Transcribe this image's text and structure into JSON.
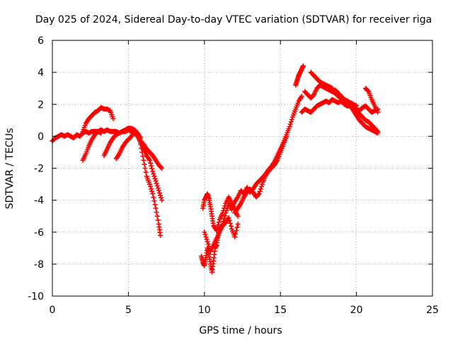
{
  "chart_data": {
    "type": "scatter",
    "title": "Day 025 of 2024, Sidereal Day-to-day VTEC variation (SDTVAR) for receiver riga",
    "xlabel": "GPS time / hours",
    "ylabel": "SDTVAR / TECUs",
    "xlim": [
      0,
      25
    ],
    "ylim": [
      -10,
      6
    ],
    "x_ticks": [
      0,
      5,
      10,
      15,
      20,
      25
    ],
    "y_ticks": [
      -10,
      -8,
      -6,
      -4,
      -2,
      0,
      2,
      4,
      6
    ],
    "x_tick_labels": [
      "0",
      "5",
      "10",
      "15",
      "20",
      "25"
    ],
    "y_tick_labels": [
      "-10",
      "-8",
      "-6",
      "-4",
      "-2",
      "0",
      "2",
      "4",
      "6"
    ],
    "grid": true,
    "marker": "+",
    "color": "#ff0000",
    "series": [
      {
        "x": [
          0.0,
          0.2,
          0.4,
          0.6,
          0.8,
          1.0,
          1.2,
          1.4,
          1.6,
          1.8,
          2.0,
          2.2,
          2.4,
          2.6,
          2.8,
          3.0,
          3.2,
          3.4,
          3.6,
          3.8,
          4.0,
          4.2,
          4.4,
          4.6,
          4.8,
          5.0,
          5.2,
          5.4,
          5.6,
          5.8,
          6.0,
          6.2,
          6.4,
          6.6,
          6.8,
          7.0,
          7.2
        ],
        "y": [
          -0.3,
          -0.1,
          0.0,
          0.1,
          0.0,
          0.1,
          0.0,
          -0.1,
          0.1,
          0.0,
          0.2,
          0.3,
          0.2,
          0.3,
          0.3,
          0.3,
          0.4,
          0.3,
          0.4,
          0.3,
          0.3,
          0.3,
          0.2,
          0.3,
          0.3,
          0.4,
          0.3,
          0.2,
          0.0,
          -0.4,
          -0.8,
          -1.2,
          -1.5,
          -2.2,
          -2.8,
          -3.4,
          -4.0
        ]
      },
      {
        "x": [
          2.0,
          2.2,
          2.4,
          2.6,
          2.8,
          3.0,
          3.2,
          3.4,
          3.6,
          3.8,
          4.0
        ],
        "y": [
          0.3,
          0.8,
          1.1,
          1.3,
          1.5,
          1.6,
          1.8,
          1.7,
          1.7,
          1.6,
          1.1
        ]
      },
      {
        "x": [
          2.0,
          2.2,
          2.4,
          2.6,
          2.8,
          3.0,
          3.2
        ],
        "y": [
          -1.5,
          -1.1,
          -0.6,
          -0.2,
          0.1,
          0.3,
          0.2
        ]
      },
      {
        "x": [
          3.4,
          3.6,
          3.8,
          4.0,
          4.2,
          4.4,
          4.6,
          4.8,
          5.0,
          5.2,
          5.4,
          5.6,
          5.8
        ],
        "y": [
          -1.2,
          -0.8,
          -0.4,
          -0.1,
          0.1,
          0.2,
          0.3,
          0.4,
          0.5,
          0.5,
          0.4,
          0.2,
          -0.1
        ]
      },
      {
        "x": [
          4.2,
          4.4,
          4.6,
          4.8,
          5.0,
          5.2,
          5.4,
          5.6,
          5.8,
          6.0,
          6.2,
          6.4,
          6.6,
          6.8,
          7.0,
          7.2
        ],
        "y": [
          -1.4,
          -1.1,
          -0.7,
          -0.4,
          -0.2,
          0.0,
          0.3,
          0.1,
          -0.3,
          -0.5,
          -0.8,
          -1.0,
          -1.2,
          -1.5,
          -1.8,
          -2.0
        ]
      },
      {
        "x": [
          5.8,
          6.0,
          6.2,
          6.4,
          6.6,
          6.8,
          7.0,
          7.1
        ],
        "y": [
          -0.5,
          -1.5,
          -2.5,
          -3.0,
          -3.6,
          -4.5,
          -5.5,
          -6.2
        ]
      },
      {
        "x": [
          9.8,
          9.9,
          10.0,
          10.1,
          10.2,
          10.3,
          10.4,
          10.5,
          10.6,
          10.7,
          10.8,
          10.9,
          11.0,
          11.2,
          11.4,
          11.6,
          11.8,
          12.0,
          12.2,
          12.4,
          12.6,
          12.8,
          13.0,
          13.2,
          13.4,
          13.6,
          13.8,
          14.0,
          14.2,
          14.4,
          14.6,
          14.8,
          15.0,
          15.2,
          15.4,
          15.6,
          15.8,
          16.0,
          16.2,
          16.4
        ],
        "y": [
          -7.5,
          -7.9,
          -8.1,
          -7.6,
          -7.0,
          -7.4,
          -8.0,
          -8.5,
          -7.8,
          -7.0,
          -6.8,
          -6.2,
          -5.8,
          -5.5,
          -4.8,
          -4.2,
          -4.6,
          -4.1,
          -3.8,
          -3.4,
          -3.6,
          -3.2,
          -3.5,
          -3.3,
          -3.0,
          -2.8,
          -2.6,
          -2.4,
          -2.1,
          -1.9,
          -1.6,
          -1.2,
          -0.8,
          -0.4,
          0.1,
          0.6,
          1.2,
          1.7,
          2.2,
          2.5
        ]
      },
      {
        "x": [
          9.9,
          10.0,
          10.1,
          10.2,
          10.3,
          10.4,
          10.5,
          10.6,
          10.8,
          11.0,
          11.2,
          11.4,
          11.6,
          11.8,
          12.0,
          12.2
        ],
        "y": [
          -4.5,
          -4.0,
          -3.8,
          -3.6,
          -3.9,
          -4.4,
          -5.0,
          -5.6,
          -5.9,
          -5.2,
          -4.8,
          -4.2,
          -3.8,
          -4.2,
          -4.6,
          -5.0
        ]
      },
      {
        "x": [
          10.0,
          10.2,
          10.4,
          10.6,
          10.8,
          11.0,
          11.2,
          11.4,
          11.6,
          11.8,
          12.0,
          12.2
        ],
        "y": [
          -6.0,
          -6.6,
          -7.2,
          -6.8,
          -6.4,
          -6.0,
          -5.6,
          -5.4,
          -5.1,
          -5.8,
          -6.3,
          -5.5
        ]
      },
      {
        "x": [
          12.0,
          12.2,
          12.4,
          12.6,
          12.8,
          13.0,
          13.2,
          13.4,
          13.6,
          13.8,
          14.0,
          14.2,
          14.4,
          14.6,
          14.8,
          15.0,
          15.2,
          15.4
        ],
        "y": [
          -4.8,
          -4.5,
          -4.2,
          -3.8,
          -3.5,
          -3.3,
          -3.5,
          -3.8,
          -3.6,
          -3.0,
          -2.5,
          -2.2,
          -2.0,
          -1.8,
          -1.5,
          -1.0,
          -0.5,
          0.0
        ]
      },
      {
        "x": [
          16.0,
          16.1,
          16.2,
          16.3,
          16.4,
          16.5
        ],
        "y": [
          3.2,
          3.5,
          3.8,
          4.0,
          4.2,
          4.4
        ]
      },
      {
        "x": [
          16.4,
          16.6,
          16.8,
          17.0,
          17.2,
          17.4,
          17.6,
          17.8,
          18.0,
          18.2,
          18.4,
          18.6,
          18.8,
          19.0,
          19.2,
          19.4,
          19.6,
          19.8,
          20.0,
          20.2,
          20.4,
          20.6,
          20.8,
          21.0,
          21.2,
          21.4
        ],
        "y": [
          1.5,
          1.7,
          1.6,
          1.5,
          1.7,
          1.9,
          2.0,
          2.1,
          2.2,
          2.1,
          2.3,
          2.2,
          2.1,
          2.2,
          2.0,
          1.9,
          1.9,
          1.8,
          1.7,
          1.6,
          1.8,
          1.9,
          1.7,
          1.5,
          1.6,
          1.7
        ]
      },
      {
        "x": [
          16.6,
          16.8,
          17.0,
          17.2,
          17.4,
          17.6,
          17.8,
          18.0,
          18.2,
          18.4,
          18.6,
          18.8,
          19.0,
          19.2,
          19.4,
          19.6,
          19.8,
          20.0,
          20.2,
          20.4,
          20.6,
          20.8,
          21.0,
          21.2,
          21.4
        ],
        "y": [
          2.8,
          2.6,
          2.4,
          2.6,
          3.0,
          3.2,
          3.1,
          3.0,
          2.9,
          2.8,
          2.7,
          2.5,
          2.4,
          2.1,
          2.0,
          1.9,
          1.6,
          1.3,
          1.0,
          0.8,
          0.6,
          0.5,
          0.4,
          0.3,
          0.2
        ]
      },
      {
        "x": [
          17.0,
          17.2,
          17.4,
          17.6,
          17.8,
          18.0,
          18.2,
          18.4,
          18.6,
          18.8,
          19.0,
          19.2,
          19.4,
          19.6,
          19.8,
          20.0
        ],
        "y": [
          4.0,
          3.8,
          3.6,
          3.4,
          3.3,
          3.2,
          3.1,
          3.0,
          2.8,
          2.6,
          2.4,
          2.3,
          2.2,
          2.1,
          2.0,
          1.9
        ]
      },
      {
        "x": [
          18.6,
          18.8,
          19.0,
          19.2,
          19.4,
          19.6,
          19.8,
          20.0,
          20.2,
          20.4,
          20.6,
          20.8,
          21.0,
          21.2,
          21.4
        ],
        "y": [
          2.9,
          2.7,
          2.5,
          2.3,
          2.1,
          1.9,
          1.7,
          1.6,
          1.4,
          1.2,
          1.0,
          0.9,
          0.7,
          0.5,
          0.3
        ]
      },
      {
        "x": [
          20.6,
          20.8,
          21.0,
          21.2,
          21.4
        ],
        "y": [
          3.0,
          2.8,
          2.3,
          1.9,
          1.5
        ]
      }
    ]
  }
}
